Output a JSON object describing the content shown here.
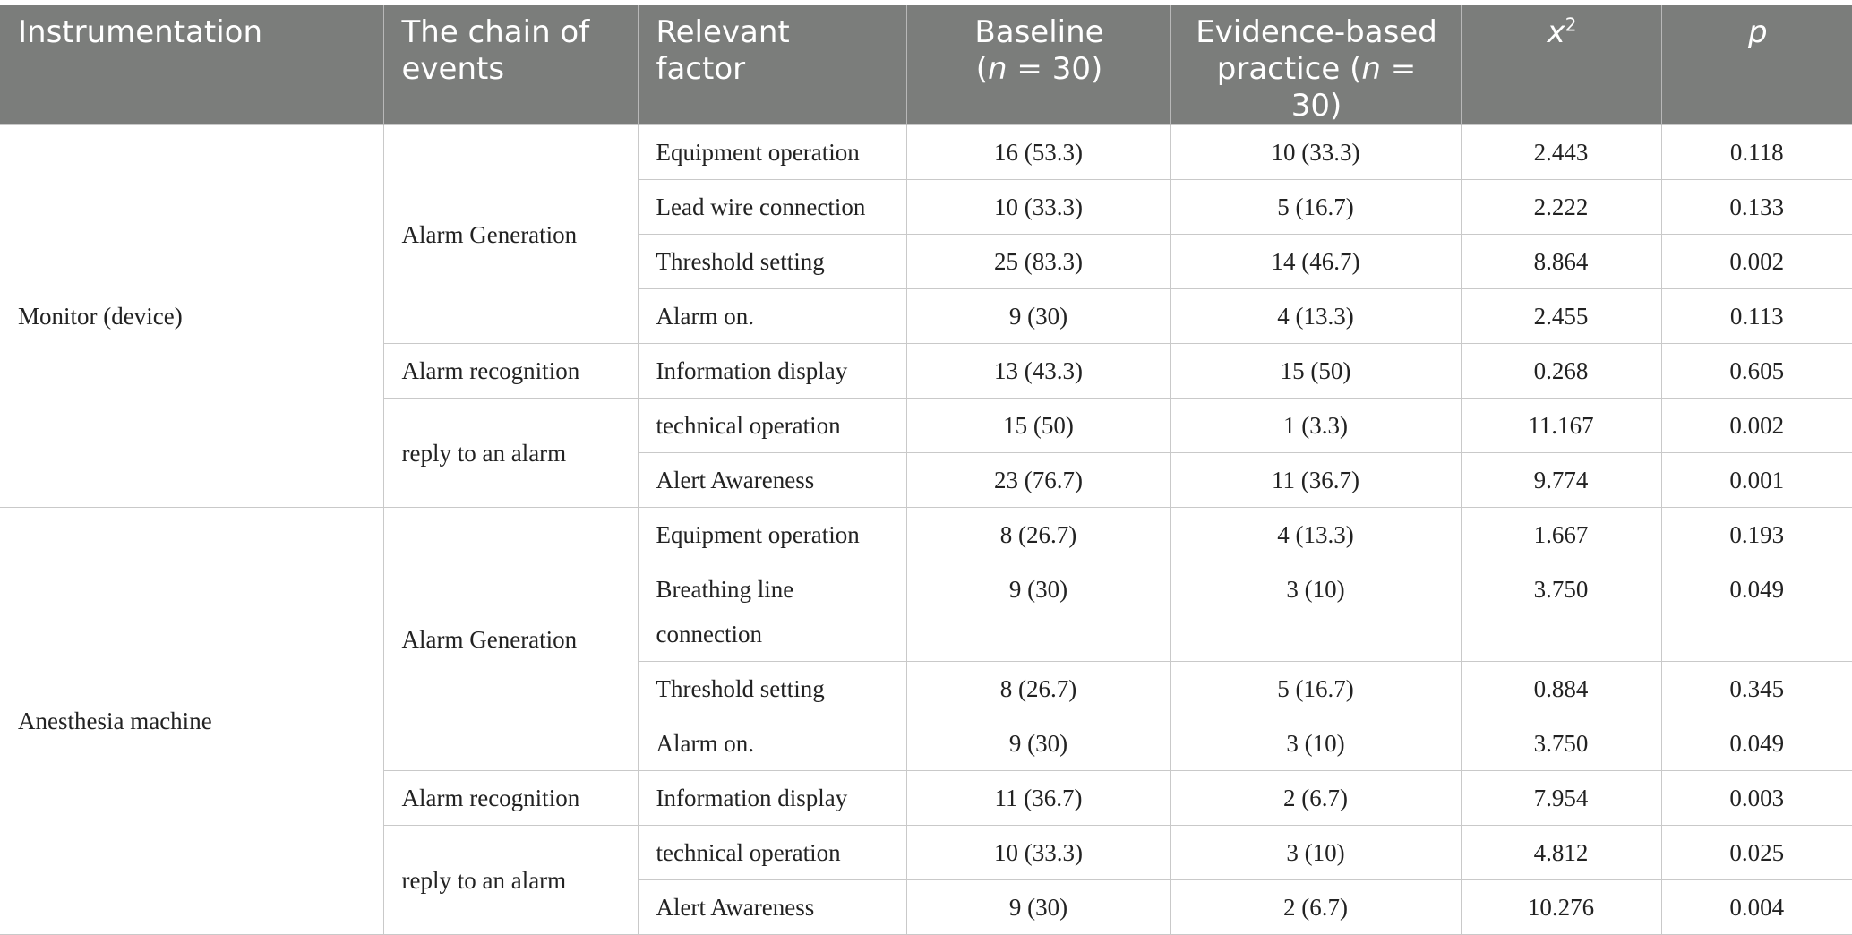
{
  "header": {
    "col1": "Instrumentation",
    "col2_line1": "The chain of",
    "col2_line2": "events",
    "col3_line1": "Relevant",
    "col3_line2": "factor",
    "col4_line1": "Baseline",
    "col4_n": "n",
    "col4_eq": " = 30)",
    "col4_open": "(",
    "col5_line1": "Evidence-based",
    "col5_pre": "practice (",
    "col5_n": "n",
    "col5_eq": " = 30)",
    "col6_x": "x",
    "col6_sup": "2",
    "col7": "p"
  },
  "groups": [
    {
      "instrument": "Monitor (device)",
      "chains": [
        {
          "chain": "Alarm Generation",
          "rows": [
            {
              "factor": "Equipment operation",
              "baseline": "16 (53.3)",
              "ebp": "10 (33.3)",
              "x2": "2.443",
              "p": "0.118"
            },
            {
              "factor": "Lead wire connection",
              "baseline": "10 (33.3)",
              "ebp": "5 (16.7)",
              "x2": "2.222",
              "p": "0.133"
            },
            {
              "factor": "Threshold setting",
              "baseline": "25 (83.3)",
              "ebp": "14 (46.7)",
              "x2": "8.864",
              "p": "0.002"
            },
            {
              "factor": "Alarm on.",
              "baseline": "9 (30)",
              "ebp": "4 (13.3)",
              "x2": "2.455",
              "p": "0.113"
            }
          ]
        },
        {
          "chain": "Alarm recognition",
          "rows": [
            {
              "factor": "Information display",
              "baseline": "13 (43.3)",
              "ebp": "15 (50)",
              "x2": "0.268",
              "p": "0.605"
            }
          ]
        },
        {
          "chain": "reply to an alarm",
          "rows": [
            {
              "factor": "technical operation",
              "baseline": "15 (50)",
              "ebp": "1 (3.3)",
              "x2": "11.167",
              "p": "0.002"
            },
            {
              "factor": "Alert Awareness",
              "baseline": "23 (76.7)",
              "ebp": "11 (36.7)",
              "x2": "9.774",
              "p": "0.001"
            }
          ]
        }
      ]
    },
    {
      "instrument": "Anesthesia machine",
      "chains": [
        {
          "chain": "Alarm Generation",
          "rows": [
            {
              "factor": "Equipment operation",
              "baseline": "8 (26.7)",
              "ebp": "4 (13.3)",
              "x2": "1.667",
              "p": "0.193"
            },
            {
              "factor": "Breathing line connection",
              "baseline": "9 (30)",
              "ebp": "3 (10)",
              "x2": "3.750",
              "p": "0.049"
            },
            {
              "factor": "Threshold setting",
              "baseline": "8 (26.7)",
              "ebp": "5 (16.7)",
              "x2": "0.884",
              "p": "0.345"
            },
            {
              "factor": "Alarm on.",
              "baseline": "9 (30)",
              "ebp": "3 (10)",
              "x2": "3.750",
              "p": "0.049"
            }
          ]
        },
        {
          "chain": "Alarm recognition",
          "rows": [
            {
              "factor": "Information display",
              "baseline": "11 (36.7)",
              "ebp": "2 (6.7)",
              "x2": "7.954",
              "p": "0.003"
            }
          ]
        },
        {
          "chain": "reply to an alarm",
          "rows": [
            {
              "factor": "technical operation",
              "baseline": "10 (33.3)",
              "ebp": "3 (10)",
              "x2": "4.812",
              "p": "0.025"
            },
            {
              "factor": "Alert Awareness",
              "baseline": "9 (30)",
              "ebp": "2 (6.7)",
              "x2": "10.276",
              "p": "0.004"
            }
          ]
        }
      ]
    }
  ]
}
